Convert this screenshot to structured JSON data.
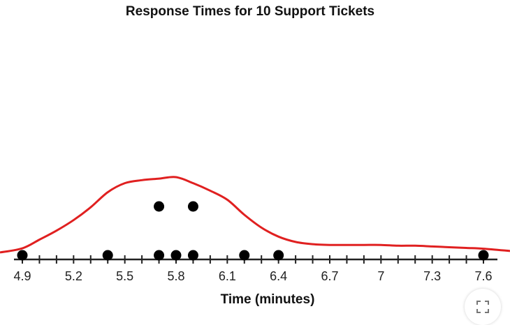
{
  "chart_data": {
    "type": "dot_plot",
    "title": "Response Times for 10 Support Tickets",
    "xlabel": "Time (minutes)",
    "xlim": [
      4.9,
      7.6
    ],
    "ticks": [
      "4.9",
      "5.2",
      "5.5",
      "5.8",
      "6.1",
      "6.4",
      "6.7",
      "7",
      "7.3",
      "7.6"
    ],
    "minor_step": 0.1,
    "points": [
      4.9,
      5.4,
      5.7,
      5.7,
      5.8,
      5.9,
      5.9,
      6.2,
      6.4,
      7.6
    ],
    "density_curve": {
      "color": "#e02020",
      "x": [
        4.9,
        5.0,
        5.1,
        5.2,
        5.3,
        5.4,
        5.5,
        5.6,
        5.7,
        5.8,
        5.9,
        6.0,
        6.1,
        6.2,
        6.3,
        6.4,
        6.5,
        6.6,
        6.7,
        6.8,
        6.9,
        7.0,
        7.1,
        7.2,
        7.3,
        7.4,
        7.5,
        7.6
      ],
      "y": [
        0.055,
        0.17,
        0.29,
        0.43,
        0.6,
        0.8,
        0.92,
        0.96,
        0.98,
        1.0,
        0.92,
        0.82,
        0.7,
        0.5,
        0.33,
        0.21,
        0.14,
        0.11,
        0.1,
        0.1,
        0.1,
        0.1,
        0.09,
        0.09,
        0.08,
        0.07,
        0.06,
        0.05
      ]
    },
    "grid": false,
    "legend": "none"
  },
  "controls": {
    "fullscreen_icon": "expand-icon"
  }
}
